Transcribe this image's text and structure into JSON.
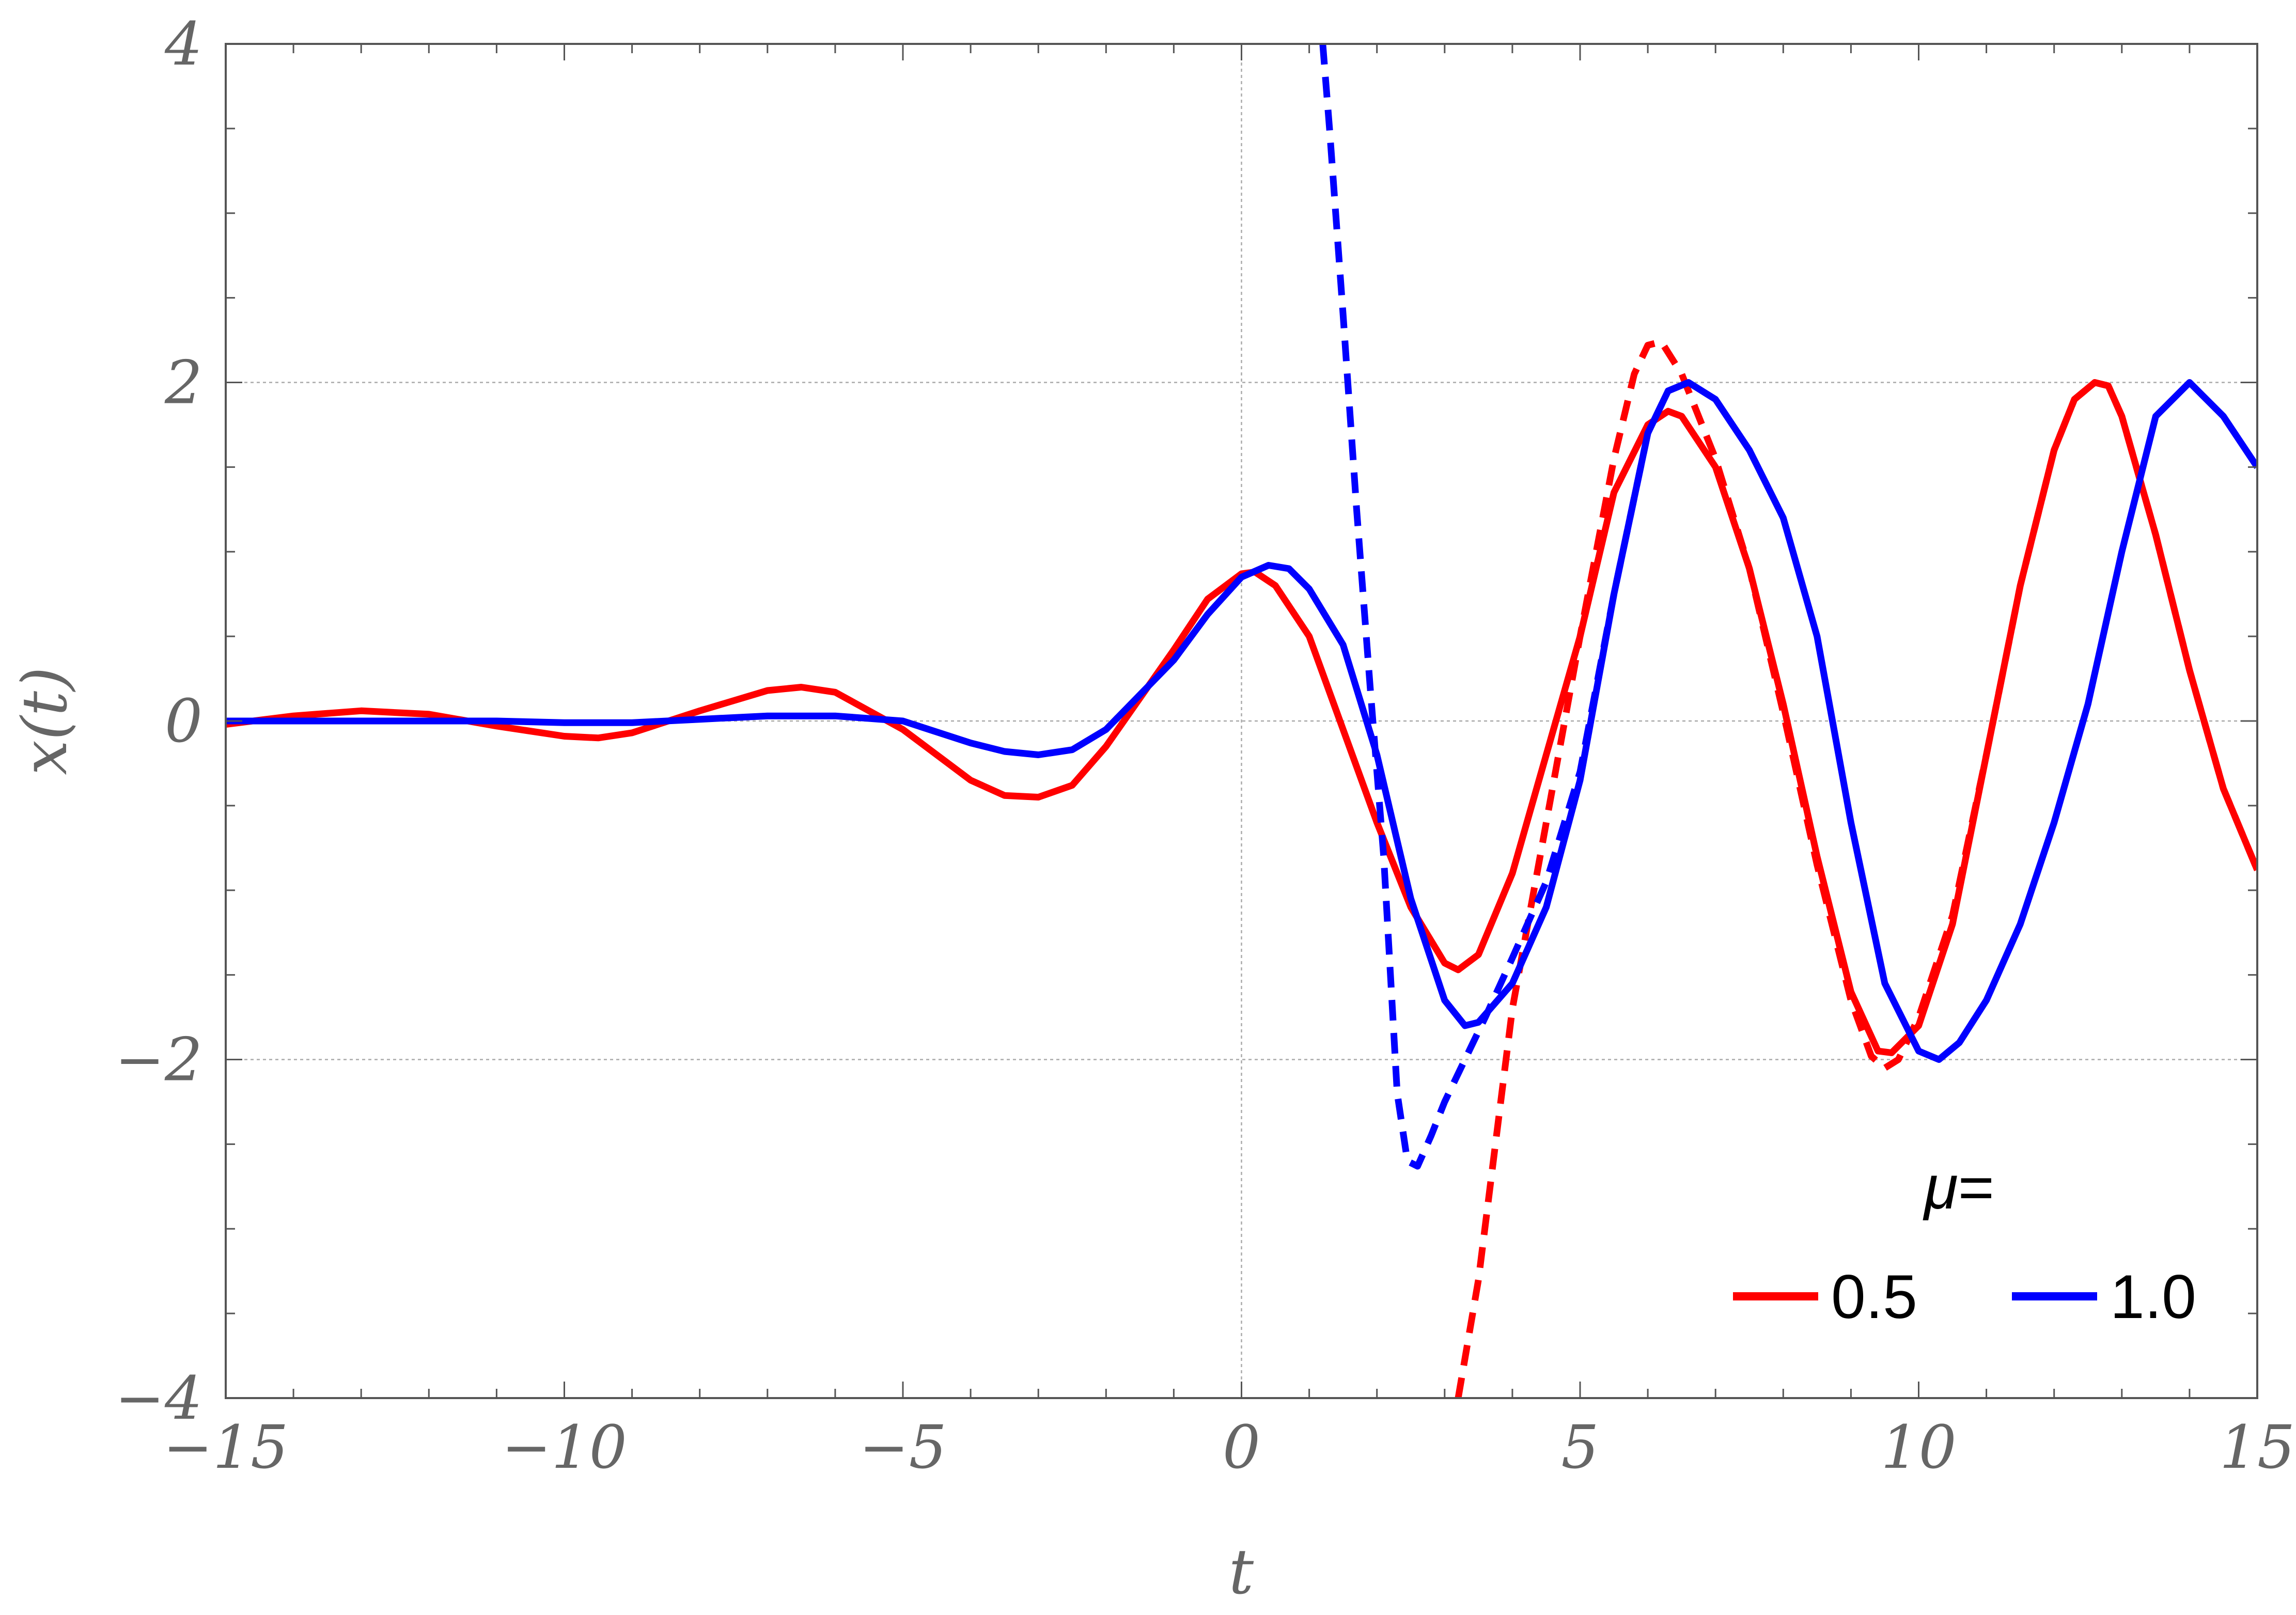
{
  "chart_data": {
    "type": "line",
    "title": "",
    "xlabel": "t",
    "ylabel": "x(t)",
    "xlim": [
      -15,
      15
    ],
    "ylim": [
      -4,
      4
    ],
    "x_ticks": [
      -15,
      -10,
      -5,
      0,
      5,
      10,
      15
    ],
    "x_tick_labels": [
      "−15",
      "−10",
      "−5",
      "0",
      "5",
      "10",
      "15"
    ],
    "y_ticks": [
      -4,
      -2,
      0,
      2,
      4
    ],
    "y_tick_labels": [
      "−4",
      "−2",
      "0",
      "2",
      "4"
    ],
    "grid_lines": {
      "x": [
        0
      ],
      "y": [
        -2,
        0,
        2
      ]
    },
    "legend": {
      "title_symbol": "μ",
      "title_suffix": "=",
      "placement": "bottom-right",
      "entries": [
        {
          "label": "0.5",
          "color": "#ff0000"
        },
        {
          "label": "1.0",
          "color": "#0000ff"
        }
      ]
    },
    "series": [
      {
        "name": "0.5",
        "style": "solid",
        "color": "#ff0000",
        "x": [
          -15,
          -14,
          -13,
          -12,
          -11,
          -10,
          -9.5,
          -9,
          -8,
          -7,
          -6.5,
          -6,
          -5,
          -4,
          -3.5,
          -3,
          -2.5,
          -2,
          -1,
          -0.5,
          0,
          0.2,
          0.5,
          1,
          2,
          2.5,
          3,
          3.2,
          3.5,
          4,
          5,
          5.5,
          6,
          6.3,
          6.5,
          7,
          7.5,
          8,
          8.5,
          9,
          9.4,
          9.6,
          10,
          10.5,
          11,
          11.5,
          12,
          12.3,
          12.6,
          12.8,
          13,
          13.5,
          14,
          14.5,
          15
        ],
        "y": [
          -0.02,
          0.03,
          0.06,
          0.04,
          -0.03,
          -0.09,
          -0.1,
          -0.07,
          0.06,
          0.18,
          0.2,
          0.17,
          -0.05,
          -0.35,
          -0.44,
          -0.45,
          -0.38,
          -0.15,
          0.42,
          0.72,
          0.87,
          0.88,
          0.8,
          0.5,
          -0.6,
          -1.1,
          -1.43,
          -1.47,
          -1.38,
          -0.9,
          0.5,
          1.35,
          1.75,
          1.83,
          1.8,
          1.5,
          0.9,
          0.1,
          -0.8,
          -1.6,
          -1.95,
          -1.96,
          -1.8,
          -1.2,
          -0.2,
          0.8,
          1.6,
          1.9,
          2.0,
          1.98,
          1.8,
          1.1,
          0.3,
          -0.4,
          -0.88
        ]
      },
      {
        "name": "",
        "style": "dashed",
        "color": "#ff0000",
        "x": [
          3.2,
          3.5,
          4,
          4.5,
          5,
          5.5,
          5.8,
          6,
          6.2,
          6.5,
          7,
          7.5,
          8,
          8.5,
          9,
          9.3,
          9.5,
          9.7,
          10,
          10.5,
          11,
          11.5,
          12,
          12.3,
          12.6,
          12.8,
          13,
          13.5,
          14,
          14.5,
          15
        ],
        "y": [
          -4,
          -3.3,
          -1.7,
          -0.6,
          0.5,
          1.55,
          2.05,
          2.22,
          2.24,
          2.05,
          1.55,
          0.9,
          0.05,
          -0.85,
          -1.65,
          -1.98,
          -2.05,
          -2.0,
          -1.75,
          -1.15,
          -0.2,
          0.8,
          1.6,
          1.9,
          2.0,
          1.98,
          1.8,
          1.1,
          0.3,
          -0.4,
          -0.88
        ]
      },
      {
        "name": "1.0",
        "style": "solid",
        "color": "#0000ff",
        "x": [
          -15,
          -13,
          -11,
          -10,
          -9,
          -8,
          -7,
          -6,
          -5,
          -4,
          -3.5,
          -3,
          -2.5,
          -2,
          -1,
          -0.5,
          0,
          0.4,
          0.7,
          1,
          1.5,
          2,
          2.5,
          3,
          3.3,
          3.5,
          4,
          4.5,
          5,
          5.5,
          6,
          6.3,
          6.6,
          7,
          7.5,
          8,
          8.5,
          9,
          9.5,
          10,
          10.3,
          10.6,
          11,
          11.5,
          12,
          12.5,
          13,
          13.5,
          14,
          14.5,
          15
        ],
        "y": [
          0.0,
          0.0,
          0.0,
          -0.01,
          -0.01,
          0.01,
          0.03,
          0.03,
          0.0,
          -0.13,
          -0.18,
          -0.2,
          -0.17,
          -0.05,
          0.36,
          0.63,
          0.85,
          0.92,
          0.9,
          0.78,
          0.45,
          -0.2,
          -1.05,
          -1.65,
          -1.8,
          -1.78,
          -1.55,
          -1.1,
          -0.35,
          0.75,
          1.7,
          1.95,
          2.0,
          1.9,
          1.6,
          1.2,
          0.5,
          -0.6,
          -1.55,
          -1.95,
          -2.0,
          -1.9,
          -1.65,
          -1.2,
          -0.6,
          0.1,
          1.0,
          1.8,
          2.0,
          1.8,
          1.5
        ]
      },
      {
        "name": "",
        "style": "dashed",
        "color": "#0000ff",
        "x": [
          1.2,
          1.3,
          1.5,
          1.7,
          1.9,
          2.1,
          2.3,
          2.45,
          2.6,
          2.8,
          3.0,
          3.3,
          3.6,
          4,
          4.5,
          5,
          5.5,
          6,
          6.3,
          6.6
        ],
        "y": [
          4,
          3.5,
          2.4,
          1.25,
          0.2,
          -0.8,
          -2.2,
          -2.6,
          -2.63,
          -2.45,
          -2.25,
          -2.0,
          -1.75,
          -1.4,
          -0.95,
          -0.3,
          0.75,
          1.7,
          1.95,
          2.0
        ]
      }
    ]
  }
}
